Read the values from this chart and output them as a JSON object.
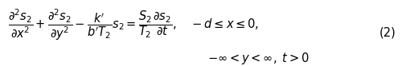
{
  "eq_line1": "$\\dfrac{\\partial^2 s_2}{\\partial x^2} + \\dfrac{\\partial^2 s_2}{\\partial y^2} - \\dfrac{k^{\\prime}}{b^{\\prime} T_2} s_2 = \\dfrac{S_2}{T_2} \\dfrac{\\partial s_2}{\\partial t}, \\quad -d \\leq x \\leq 0,$",
  "eq_line2": "$-\\infty < y < \\infty, \\; t > 0$",
  "label": "(2)",
  "background_color": "#ffffff",
  "text_color": "#000000",
  "fontsize_eq": 10.5,
  "fontsize_label": 10.5,
  "fig_width": 5.0,
  "fig_height": 0.83
}
